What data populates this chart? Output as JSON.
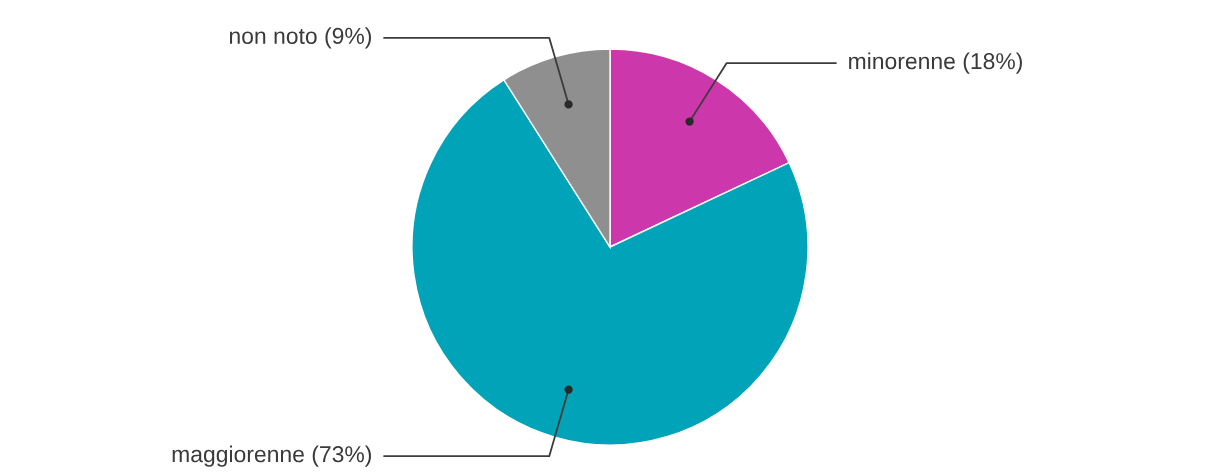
{
  "chart_data": {
    "type": "pie",
    "categories": [
      "minorenne",
      "maggiorenne",
      "non noto"
    ],
    "values": [
      18,
      73,
      9
    ],
    "value_labels": [
      "(18%)",
      "(73%)",
      "(9%)"
    ],
    "colors": [
      "#cc37ac",
      "#00a3b8",
      "#8f8f8f"
    ],
    "legend": false
  }
}
